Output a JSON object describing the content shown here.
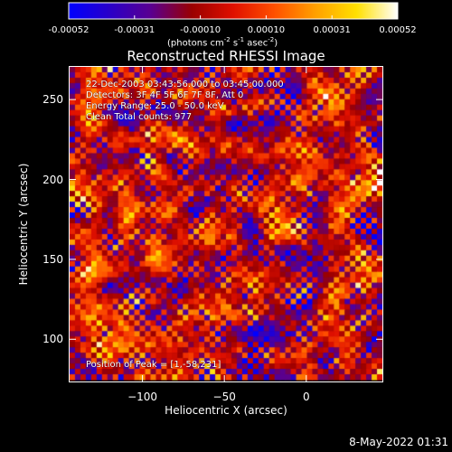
{
  "colorbar": {
    "ticks": [
      "-0.00052",
      "-0.00031",
      "-0.00010",
      "0.00010",
      "0.00031",
      "0.00052"
    ],
    "unit": {
      "prefix": "(photons cm",
      "exp1": "-2",
      "mid1": " s",
      "exp2": "-1",
      "mid2": " asec",
      "exp3": "-2",
      "suffix": ")"
    },
    "colors": [
      "#0000ff",
      "#2a00c8",
      "#5a0090",
      "#9a0000",
      "#e01000",
      "#ff5000",
      "#ffa000",
      "#ffe000",
      "#ffffff"
    ]
  },
  "title": "Reconstructed RHESSI Image",
  "annotations": {
    "time": "22-Dec-2003 03:43:56.000 to 03:45:00.000",
    "detectors": "Detectors: 3F 4F 5F 6F 7F 8F, Att 0",
    "energy": "Energy Range: 25.0 - 50.0 keV",
    "clean": "Clean     Total counts: 977",
    "peak": "Position of Peak = [1,-58,231]"
  },
  "axes": {
    "xlabel": "Heliocentric X (arcsec)",
    "ylabel": "Heliocentric Y (arcsec)",
    "xticks": [
      -100,
      -50,
      0
    ],
    "yticks": [
      100,
      150,
      200,
      250
    ],
    "xlim": [
      -145,
      47
    ],
    "ylim": [
      73,
      271
    ]
  },
  "footer": "8-May-2022 01:31"
}
